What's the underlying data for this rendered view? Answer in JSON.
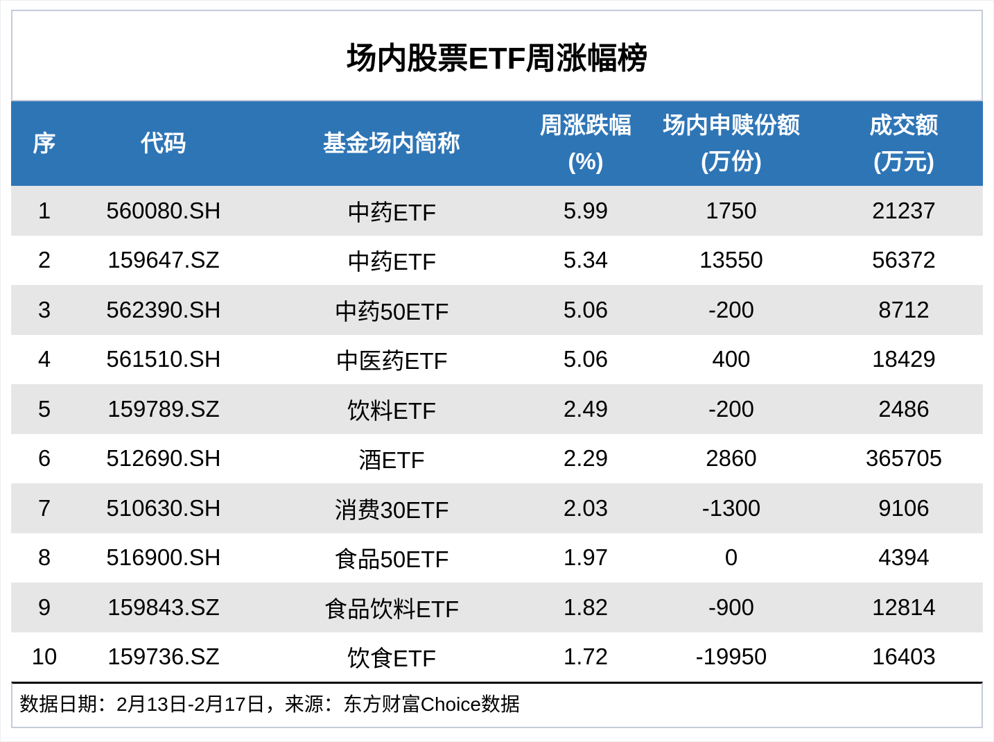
{
  "title": "场内股票ETF周涨幅榜",
  "colors": {
    "header_bg": "#2E75B6",
    "header_text": "#FFFFFF",
    "row_alt_bg": "#E7E6E6",
    "border_light": "#C6CBD9",
    "footer_top_rule": "#000000",
    "body_text": "#000000"
  },
  "table": {
    "headers": [
      {
        "line1": "序",
        "line2": ""
      },
      {
        "line1": "代码",
        "line2": ""
      },
      {
        "line1": "基金场内简称",
        "line2": ""
      },
      {
        "line1": "周涨跌幅",
        "line2": "(%)"
      },
      {
        "line1": "场内申赎份额",
        "line2": "(万份)"
      },
      {
        "line1": "成交额",
        "line2": "(万元)"
      }
    ],
    "rows": [
      {
        "cells": [
          "1",
          "560080.SH",
          "中药ETF",
          "5.99",
          "1750",
          "21237"
        ]
      },
      {
        "cells": [
          "2",
          "159647.SZ",
          "中药ETF",
          "5.34",
          "13550",
          "56372"
        ]
      },
      {
        "cells": [
          "3",
          "562390.SH",
          "中药50ETF",
          "5.06",
          "-200",
          "8712"
        ]
      },
      {
        "cells": [
          "4",
          "561510.SH",
          "中医药ETF",
          "5.06",
          "400",
          "18429"
        ]
      },
      {
        "cells": [
          "5",
          "159789.SZ",
          "饮料ETF",
          "2.49",
          "-200",
          "2486"
        ]
      },
      {
        "cells": [
          "6",
          "512690.SH",
          "酒ETF",
          "2.29",
          "2860",
          "365705"
        ]
      },
      {
        "cells": [
          "7",
          "510630.SH",
          "消费30ETF",
          "2.03",
          "-1300",
          "9106"
        ]
      },
      {
        "cells": [
          "8",
          "516900.SH",
          "食品50ETF",
          "1.97",
          "0",
          "4394"
        ]
      },
      {
        "cells": [
          "9",
          "159843.SZ",
          "食品饮料ETF",
          "1.82",
          "-900",
          "12814"
        ]
      },
      {
        "cells": [
          "10",
          "159736.SZ",
          "饮食ETF",
          "1.72",
          "-19950",
          "16403"
        ]
      }
    ]
  },
  "footer": {
    "note": "数据日期：2月13日-2月17日，来源：东方财富Choice数据"
  },
  "chart_data": {
    "type": "table",
    "title": "场内股票ETF周涨幅榜",
    "columns": [
      "序",
      "代码",
      "基金场内简称",
      "周涨跌幅(%)",
      "场内申赎份额(万份)",
      "成交额(万元)"
    ],
    "rows": [
      [
        1,
        "560080.SH",
        "中药ETF",
        5.99,
        1750,
        21237
      ],
      [
        2,
        "159647.SZ",
        "中药ETF",
        5.34,
        13550,
        56372
      ],
      [
        3,
        "562390.SH",
        "中药50ETF",
        5.06,
        -200,
        8712
      ],
      [
        4,
        "561510.SH",
        "中医药ETF",
        5.06,
        400,
        18429
      ],
      [
        5,
        "159789.SZ",
        "饮料ETF",
        2.49,
        -200,
        2486
      ],
      [
        6,
        "512690.SH",
        "酒ETF",
        2.29,
        2860,
        365705
      ],
      [
        7,
        "510630.SH",
        "消费30ETF",
        2.03,
        -1300,
        9106
      ],
      [
        8,
        "516900.SH",
        "食品50ETF",
        1.97,
        0,
        4394
      ],
      [
        9,
        "159843.SZ",
        "食品饮料ETF",
        1.82,
        -900,
        12814
      ],
      [
        10,
        "159736.SZ",
        "饮食ETF",
        1.72,
        -19950,
        16403
      ]
    ],
    "note": "数据日期：2月13日-2月17日，来源：东方财富Choice数据",
    "layout": {
      "header_rows": 1,
      "striped": true,
      "alignment": "center"
    }
  }
}
